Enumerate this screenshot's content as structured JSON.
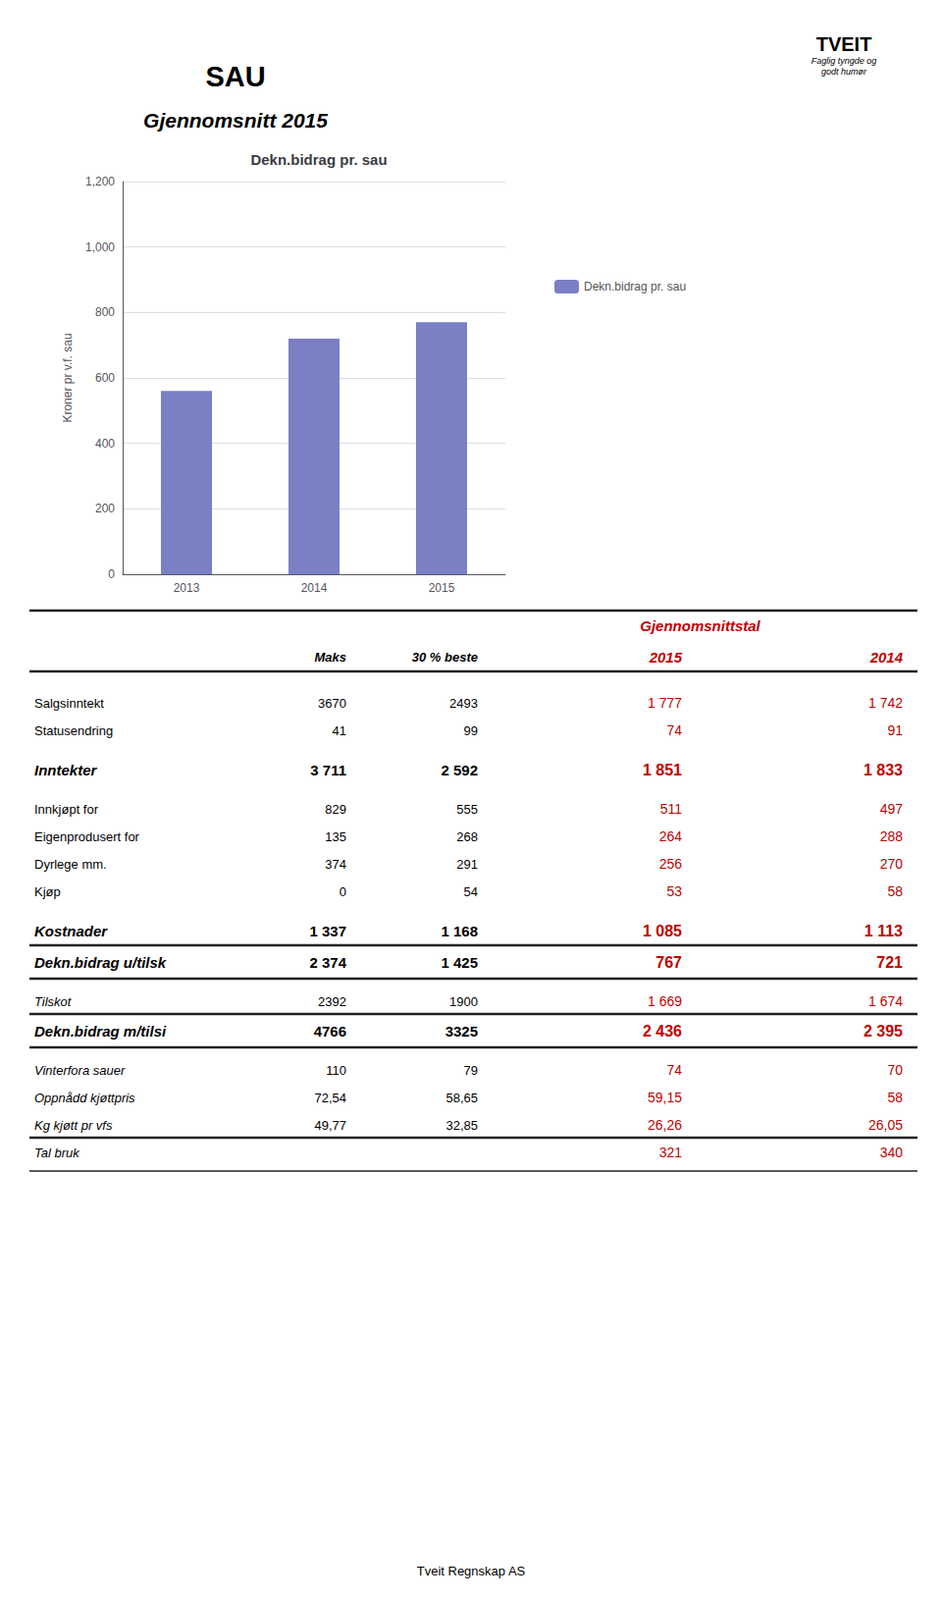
{
  "chart_data": [
    {
      "type": "bar",
      "title": "Dekn.bidrag pr. sau",
      "ylabel": "Kroner pr v.f. sau",
      "categories": [
        "2013",
        "2014",
        "2015"
      ],
      "series": [
        {
          "name": "Dekn.bidrag pr. sau",
          "color": "#7b7fc4",
          "values": [
            560,
            720,
            770
          ]
        }
      ],
      "ylim": [
        0,
        1200
      ],
      "yticks": [
        0,
        200,
        400,
        600,
        800,
        1000,
        1200
      ],
      "grid": true,
      "legend": "right",
      "annotations": [
        "SAU",
        "Gjennomsnitt 2015",
        "TVEIT",
        "Faglig tyngde og",
        "godt humør",
        "Tveit Regnskap AS"
      ]
    },
    {
      "type": "table",
      "columns": [
        "Maks",
        "30 % beste",
        "2015",
        "2014"
      ],
      "group": {
        "label": "Gjennomsnittstal",
        "columns": [
          "2015",
          "2014"
        ],
        "color": "#c00000"
      },
      "row_groups": [
        [
          {
            "label": "Salgsinntekt",
            "cells": [
              "3670",
              "2493",
              "1 777",
              "1 742"
            ]
          },
          {
            "label": "Statusendring",
            "cells": [
              "41",
              "99",
              "74",
              "91"
            ]
          }
        ],
        [
          {
            "label": "Inntekter",
            "cells": [
              "3 711",
              "2 592",
              "1 851",
              "1 833"
            ],
            "bold": true,
            "italic": true
          }
        ],
        [
          {
            "label": "Innkjøpt for",
            "cells": [
              "829",
              "555",
              "511",
              "497"
            ]
          },
          {
            "label": "Eigenprodusert for",
            "cells": [
              "135",
              "268",
              "264",
              "288"
            ]
          },
          {
            "label": "Dyrlege mm.",
            "cells": [
              "374",
              "291",
              "256",
              "270"
            ]
          },
          {
            "label": "Kjøp",
            "cells": [
              "0",
              "54",
              "53",
              "58"
            ]
          }
        ],
        [
          {
            "label": "Kostnader",
            "cells": [
              "1 337",
              "1 168",
              "1 085",
              "1 113"
            ],
            "bold": true,
            "italic": true
          },
          {
            "label": "Dekn.bidrag u/tilsk",
            "cells": [
              "2 374",
              "1 425",
              "767",
              "721"
            ],
            "bold": true,
            "italic": true,
            "line_above": true,
            "line_below": true
          }
        ],
        [
          {
            "label": "Tilskot",
            "cells": [
              "2392",
              "1900",
              "1 669",
              "1 674"
            ],
            "italic": true
          },
          {
            "label": "Dekn.bidrag m/tilsi",
            "cells": [
              "4766",
              "3325",
              "2 436",
              "2 395"
            ],
            "bold": true,
            "italic": true,
            "line_above": true,
            "line_below": true
          }
        ],
        [
          {
            "label": "Vinterfora sauer",
            "cells": [
              "110",
              "79",
              "74",
              "70"
            ],
            "italic": true
          },
          {
            "label": "Oppnådd kjøttpris",
            "cells": [
              "72,54",
              "58,65",
              "59,15",
              "58"
            ],
            "italic": true
          },
          {
            "label": "Kg kjøtt pr vfs",
            "cells": [
              "49,77",
              "32,85",
              "26,26",
              "26,05"
            ],
            "italic": true
          },
          {
            "label": "Tal bruk",
            "cells": [
              null,
              null,
              "321",
              "340"
            ],
            "italic": true,
            "line_above": true
          }
        ]
      ]
    }
  ]
}
